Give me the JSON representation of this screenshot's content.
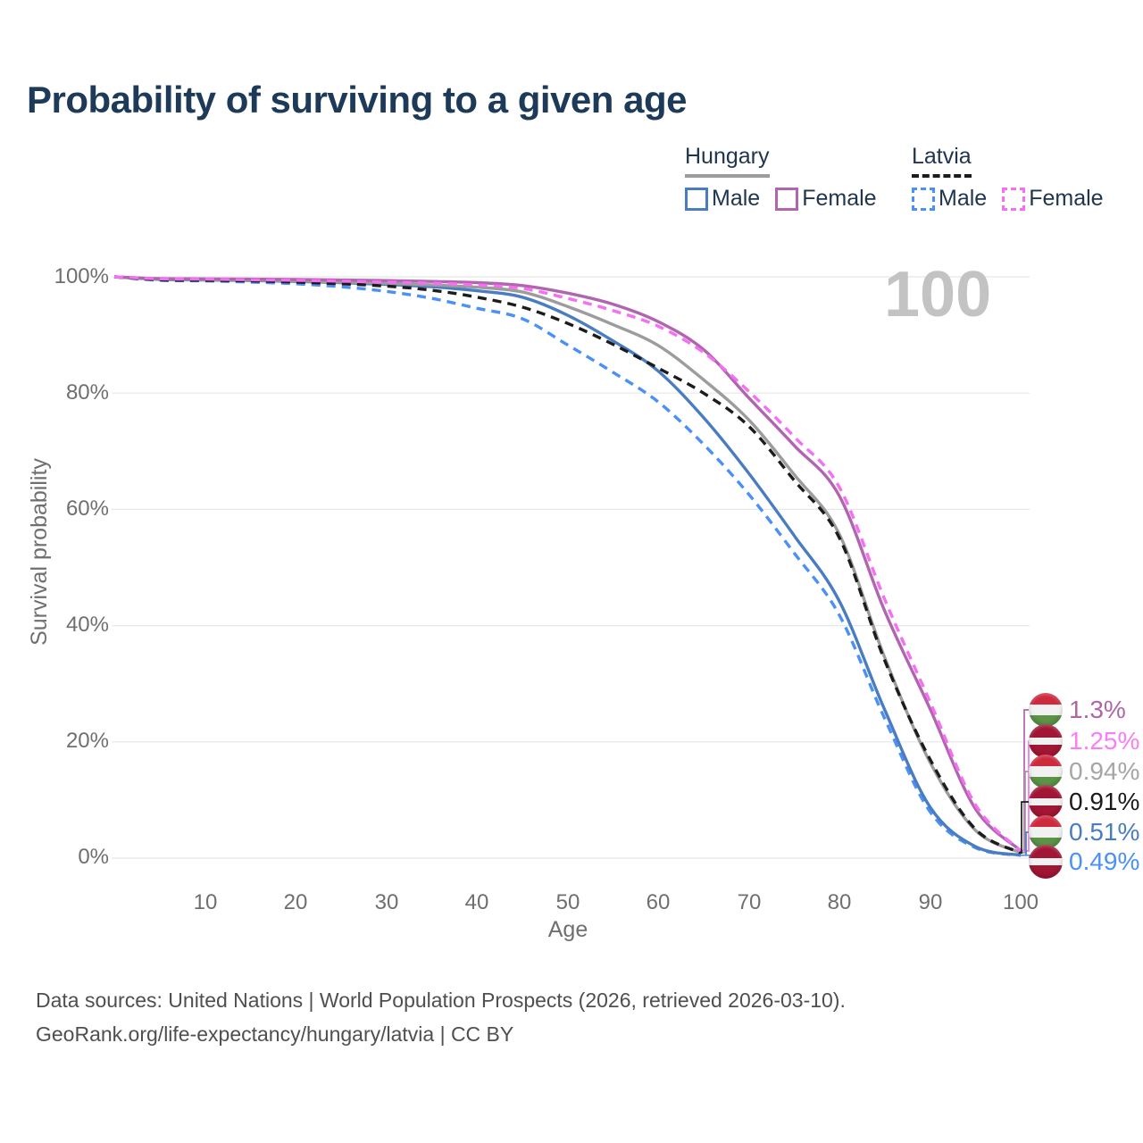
{
  "header": {
    "title": "Probability of surviving to a given age"
  },
  "legend": {
    "hungary": {
      "label": "Hungary",
      "male": "Male",
      "female": "Female"
    },
    "latvia": {
      "label": "Latvia",
      "male": "Male",
      "female": "Female"
    }
  },
  "watermark": "100",
  "axes": {
    "x_label": "Age",
    "y_label": "Survival probability",
    "x_ticks": [
      "10",
      "20",
      "30",
      "40",
      "50",
      "60",
      "70",
      "80",
      "90",
      "100"
    ],
    "y_ticks": [
      "100%",
      "80%",
      "60%",
      "40%",
      "20%",
      "0%"
    ]
  },
  "footer": {
    "line1": "Data sources: United Nations | World Population Prospects (2026, retrieved 2026-03-10).",
    "line2": "GeoRank.org/life-expectancy/hungary/latvia | CC BY"
  },
  "colors": {
    "hungary_male": "#4a7cc2",
    "hungary_female": "#b164af",
    "hungary": "#9c9c9c",
    "latvia_male": "#4a90f5",
    "latvia_female": "#f470f0",
    "latvia": "#1c1c1c",
    "grid": "#e8e8e8",
    "title": "#1d3a59",
    "axis_text": "#6f6f6f",
    "watermark": "#c3c3c3"
  },
  "chart_data": {
    "type": "line",
    "title": "Probability of surviving to a given age",
    "xlabel": "Age",
    "ylabel": "Survival probability",
    "xlim": [
      0,
      100
    ],
    "ylim": [
      0,
      100
    ],
    "grid": "horizontal",
    "legend_position": "top-right",
    "y_gridlines_pct": [
      0,
      20,
      40,
      60,
      80,
      100
    ],
    "x_ticks": [
      10,
      20,
      30,
      40,
      50,
      60,
      70,
      80,
      90,
      100
    ],
    "x": [
      0,
      5,
      10,
      15,
      20,
      25,
      30,
      35,
      40,
      45,
      50,
      55,
      60,
      65,
      70,
      75,
      80,
      85,
      90,
      95,
      100
    ],
    "draw_order": [
      5,
      4,
      2,
      3,
      0,
      1
    ],
    "series": [
      {
        "id": "hungary-female",
        "name": "Hungary Female",
        "color": "#b164af",
        "dash": "solid",
        "end_label": "1.3%",
        "values": [
          100,
          99.7,
          99.65,
          99.6,
          99.55,
          99.45,
          99.35,
          99.2,
          99.0,
          98.5,
          97.2,
          95.3,
          92.3,
          87.5,
          79.2,
          71.0,
          62.3,
          42.5,
          25.7,
          8.5,
          1.3
        ]
      },
      {
        "id": "latvia-female",
        "name": "Latvia Female",
        "color": "#f470f0",
        "dash": "dashed",
        "end_label": "1.25%",
        "values": [
          100,
          99.65,
          99.6,
          99.5,
          99.4,
          99.25,
          99.1,
          98.9,
          98.6,
          98.0,
          96.3,
          94.2,
          91.5,
          87.0,
          80.3,
          72.5,
          63.8,
          44.5,
          26.9,
          9.2,
          1.25
        ]
      },
      {
        "id": "hungary",
        "name": "Hungary",
        "color": "#9c9c9c",
        "dash": "solid",
        "end_label": "0.94%",
        "values": [
          100,
          99.6,
          99.5,
          99.4,
          99.3,
          99.1,
          98.9,
          98.6,
          98.2,
          97.4,
          94.9,
          91.8,
          88.2,
          82.3,
          75.4,
          66.0,
          55.7,
          34.5,
          16.5,
          4.8,
          0.94
        ]
      },
      {
        "id": "latvia",
        "name": "Latvia",
        "color": "#1c1c1c",
        "dash": "dashed",
        "end_label": "0.91%",
        "values": [
          100,
          99.5,
          99.4,
          99.3,
          99.1,
          98.8,
          98.4,
          97.7,
          96.5,
          94.8,
          92.0,
          88.4,
          84.3,
          80.0,
          74.3,
          65.0,
          55.1,
          34.0,
          17.0,
          5.0,
          0.91
        ]
      },
      {
        "id": "hungary-male",
        "name": "Hungary Male",
        "color": "#4a7cc2",
        "dash": "solid",
        "end_label": "0.51%",
        "values": [
          100,
          99.55,
          99.45,
          99.35,
          99.2,
          99.0,
          98.7,
          98.3,
          97.6,
          96.5,
          93.4,
          89.0,
          83.8,
          75.8,
          66.2,
          55.5,
          44.2,
          25.5,
          8.8,
          2.0,
          0.51
        ]
      },
      {
        "id": "latvia-male",
        "name": "Latvia Male",
        "color": "#4a90f5",
        "dash": "dashed",
        "end_label": "0.49%",
        "values": [
          100,
          99.4,
          99.3,
          99.1,
          98.8,
          98.3,
          97.5,
          96.3,
          94.6,
          92.8,
          88.3,
          83.6,
          78.5,
          71.2,
          62.6,
          52.5,
          41.8,
          24.0,
          8.0,
          1.8,
          0.49
        ]
      }
    ],
    "end_labels": [
      {
        "flag": "hungary",
        "text": "1.3%",
        "color": "#ae67a4"
      },
      {
        "flag": "latvia",
        "text": "1.25%",
        "color": "#f97df5"
      },
      {
        "flag": "hungary",
        "text": "0.94%",
        "color": "#a5a5a5"
      },
      {
        "flag": "latvia",
        "text": "0.91%",
        "color": "#1a1a1a"
      },
      {
        "flag": "hungary",
        "text": "0.51%",
        "color": "#4a7cc2"
      },
      {
        "flag": "latvia",
        "text": "0.49%",
        "color": "#4a90f5"
      }
    ]
  }
}
